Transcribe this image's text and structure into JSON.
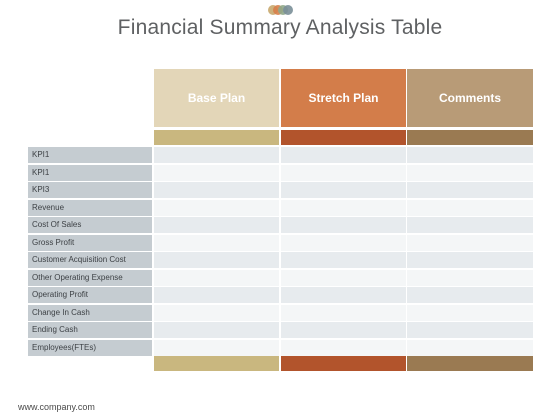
{
  "title": "Financial Summary Analysis Table",
  "logo_dot_colors": [
    "#c8a96e",
    "#d7804a",
    "#8fa88a",
    "#7a8f98"
  ],
  "columns": [
    {
      "label": "Base Plan",
      "color": "#e3d6b8",
      "accent": "#c9b77f"
    },
    {
      "label": "Stretch Plan",
      "color": "#d37d4a",
      "accent": "#b2542c"
    },
    {
      "label": "Comments",
      "color": "#b89b77",
      "accent": "#9a7a52"
    }
  ],
  "rows": [
    "KPI1",
    "KPI1",
    "KPI3",
    "Revenue",
    "Cost Of Sales",
    "Gross  Profit",
    "Customer Acquisition Cost",
    "Other Operating Expense",
    "Operating Profit",
    "Change In Cash",
    "Ending Cash",
    "Employees(FTEs)"
  ],
  "footer": "www.company.com",
  "colors": {
    "row_label_bg": "#c5ccd1",
    "row_even": "#e7ebee",
    "row_odd": "#f4f6f7",
    "title_text": "#5f6163"
  }
}
